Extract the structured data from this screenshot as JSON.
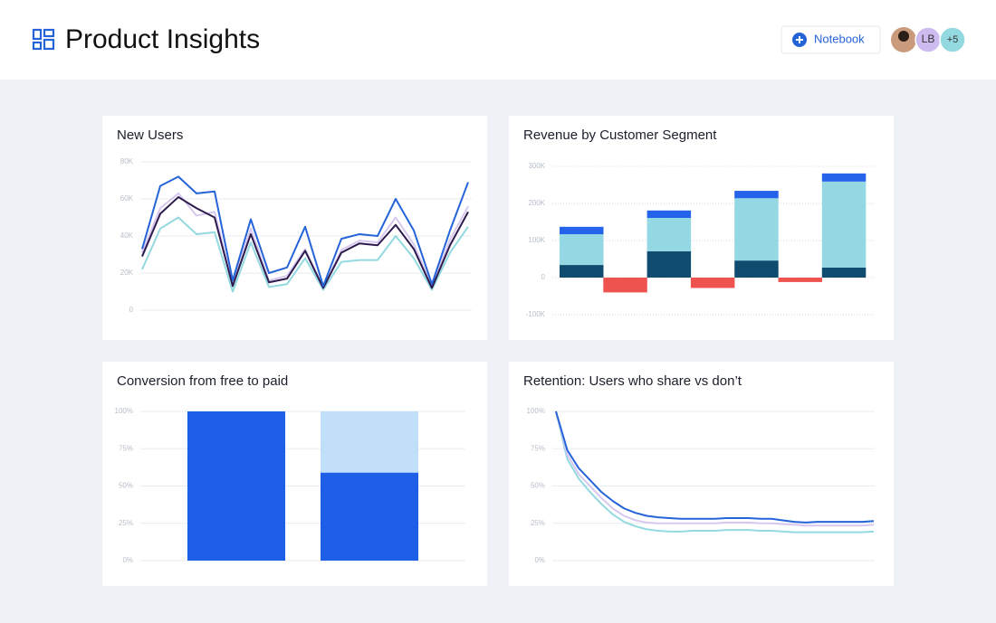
{
  "header": {
    "title": "Product Insights",
    "button": "Notebook",
    "avatars": [
      "LB",
      "+5"
    ]
  },
  "chart_data": [
    {
      "type": "line",
      "title": "New Users",
      "ylim": [
        0,
        80000
      ],
      "yticks": [
        0,
        {
          "value": 20000,
          "label": "20K"
        },
        {
          "value": 40000,
          "label": "40K"
        },
        {
          "value": 60000,
          "label": "60K"
        },
        {
          "value": 80000,
          "label": "80K"
        }
      ],
      "grid": true,
      "series": [
        {
          "color": "#93d9e0",
          "values": [
            22000,
            44000,
            50000,
            41000,
            42000,
            10000,
            36500,
            12500,
            14000,
            28000,
            11000,
            26000,
            27000,
            27000,
            40000,
            28000,
            11000,
            31000,
            45000
          ]
        },
        {
          "color": "#d6c8ee",
          "values": [
            31000,
            55000,
            63000,
            51000,
            53000,
            14000,
            44000,
            16000,
            18500,
            33000,
            12000,
            32500,
            37500,
            36500,
            50000,
            35500,
            13000,
            38000,
            56000
          ]
        },
        {
          "color": "#2d1b4e",
          "values": [
            29000,
            52000,
            61000,
            55000,
            50000,
            13000,
            41000,
            15000,
            17000,
            32000,
            12000,
            31000,
            36000,
            35000,
            46000,
            33000,
            12000,
            35000,
            53000
          ]
        },
        {
          "color": "#2563d9",
          "values": [
            33000,
            67000,
            72000,
            63000,
            64000,
            16000,
            49000,
            20000,
            23000,
            45000,
            13000,
            38500,
            41000,
            40000,
            60000,
            43000,
            14000,
            43000,
            69000
          ]
        }
      ]
    },
    {
      "type": "bar",
      "stacked": true,
      "title": "Revenue by Customer Segment",
      "categories": [
        null,
        null,
        null,
        null,
        null,
        null,
        null
      ],
      "ylim": [
        -100000,
        300000
      ],
      "yticks": [
        {
          "value": -100000,
          "label": "-100K"
        },
        0,
        {
          "value": 100000,
          "label": "100K"
        },
        {
          "value": 200000,
          "label": "200K"
        },
        {
          "value": 300000,
          "label": "300K"
        }
      ],
      "grid": true,
      "series": [
        {
          "color": "#0f4c6f",
          "values": [
            34000,
            null,
            71000,
            null,
            46000,
            null,
            27000
          ]
        },
        {
          "color": "#93d8e2",
          "values": [
            83000,
            null,
            90000,
            null,
            168000,
            null,
            232000
          ]
        },
        {
          "color": "#2563eb",
          "values": [
            20000,
            null,
            20000,
            null,
            20000,
            null,
            22000
          ]
        },
        {
          "color": "#ef5350",
          "values": [
            null,
            -40000,
            null,
            -28000,
            null,
            -12000,
            null
          ]
        }
      ]
    },
    {
      "type": "bar",
      "stacked": true,
      "title": "Conversion from free to paid",
      "categories": [
        null,
        null
      ],
      "ylim": [
        0,
        100
      ],
      "yticks": [
        {
          "value": 0,
          "label": "0%"
        },
        {
          "value": 25,
          "label": "25%"
        },
        {
          "value": 50,
          "label": "50%"
        },
        {
          "value": 75,
          "label": "75%"
        },
        {
          "value": 100,
          "label": "100%"
        }
      ],
      "grid": true,
      "series": [
        {
          "color": "#1e5fe8",
          "values": [
            100,
            59
          ]
        },
        {
          "color": "#c2dffa",
          "values": [
            null,
            41
          ]
        }
      ]
    },
    {
      "type": "line",
      "title": "Retention: Users who share vs don’t",
      "ylim": [
        0,
        100
      ],
      "yticks": [
        {
          "value": 0,
          "label": "0%"
        },
        {
          "value": 25,
          "label": "25%"
        },
        {
          "value": 50,
          "label": "50%"
        },
        {
          "value": 75,
          "label": "75%"
        },
        {
          "value": 100,
          "label": "100%"
        }
      ],
      "grid": true,
      "series": [
        {
          "color": "#93d9e0",
          "values": [
            100,
            68,
            55,
            46,
            38,
            31,
            26,
            23,
            21,
            20,
            19.5,
            19.5,
            20,
            20,
            20,
            20.5,
            20.5,
            20.5,
            20,
            20,
            19.5,
            19,
            19,
            19,
            19,
            19,
            19,
            19,
            19.5
          ]
        },
        {
          "color": "#d6c8ee",
          "values": [
            100,
            71,
            58,
            50,
            42,
            35,
            30,
            27,
            25.5,
            25,
            25,
            25,
            25,
            25,
            25,
            25.5,
            25.5,
            25.5,
            25,
            25,
            24.5,
            24,
            23.5,
            23.5,
            23.5,
            23.5,
            23.5,
            23.5,
            24
          ]
        },
        {
          "color": "#2563d9",
          "values": [
            100,
            74,
            62,
            54,
            46,
            40,
            35,
            32,
            30,
            29,
            28.5,
            28,
            28,
            28,
            28,
            28.5,
            28.5,
            28.5,
            28,
            28,
            27,
            26,
            25.5,
            26,
            26,
            26,
            26,
            26,
            26.5
          ]
        }
      ]
    }
  ]
}
